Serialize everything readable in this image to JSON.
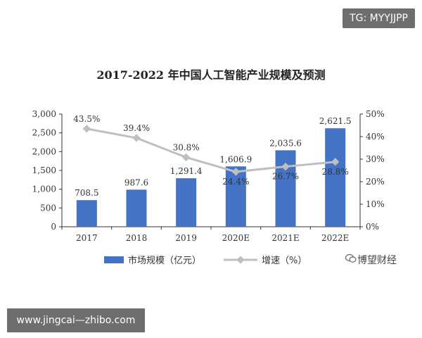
{
  "overlays": {
    "tg_handle": "TG: MYYJJPP",
    "site_url": "www.jingcai—zhibo.com",
    "brand_name": "博望财经"
  },
  "colors": {
    "bar": "#4472C4",
    "line": "#BFBFBF",
    "axis": "#333333",
    "text": "#333333"
  },
  "chart_data": {
    "type": "bar",
    "title": "2017-2022 年中国人工智能产业规模及预测",
    "categories": [
      "2017",
      "2018",
      "2019",
      "2020E",
      "2021E",
      "2022E"
    ],
    "series": [
      {
        "name": "市场规模（亿元）",
        "type": "bar",
        "axis": "left",
        "values": [
          708.5,
          987.6,
          1291.4,
          1606.9,
          2035.6,
          2621.5
        ],
        "labels": [
          "708.5",
          "987.6",
          "1,291.4",
          "1,606.9",
          "2,035.6",
          "2,621.5"
        ]
      },
      {
        "name": "增速（%）",
        "type": "line",
        "axis": "right",
        "values": [
          43.5,
          39.4,
          30.8,
          24.4,
          26.7,
          28.8
        ],
        "labels": [
          "43.5%",
          "39.4%",
          "30.8%",
          "24.4%",
          "26.7%",
          "28.8%"
        ]
      }
    ],
    "y_left": {
      "ylim": [
        0,
        3000
      ],
      "ticks": [
        0,
        500,
        1000,
        1500,
        2000,
        2500,
        3000
      ],
      "tick_labels": [
        "0",
        "500",
        "1,000",
        "1,500",
        "2,000",
        "2,500",
        "3,000"
      ]
    },
    "y_right": {
      "ylim": [
        0,
        50
      ],
      "ticks": [
        0,
        10,
        20,
        30,
        40,
        50
      ],
      "tick_labels": [
        "0%",
        "10%",
        "20%",
        "30%",
        "40%",
        "50%"
      ]
    },
    "grid": false,
    "legend": "bottom"
  }
}
